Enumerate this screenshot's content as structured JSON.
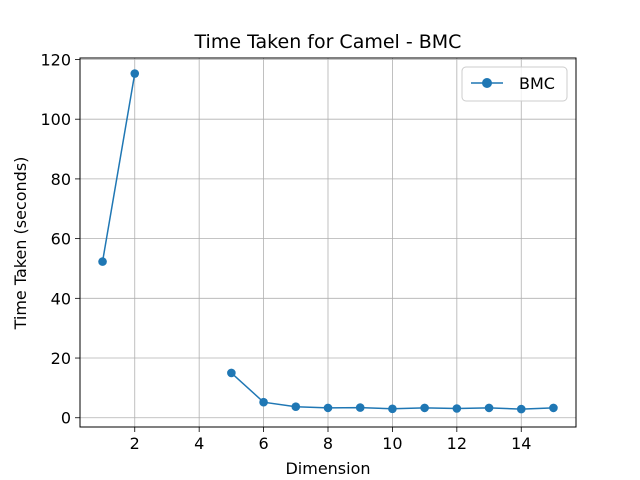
{
  "chart_data": {
    "type": "line",
    "title": "Time Taken for Camel - BMC",
    "xlabel": "Dimension",
    "ylabel": "Time Taken (seconds)",
    "xlim": [
      0.3,
      15.7
    ],
    "ylim": [
      -3.1,
      120.5
    ],
    "xticks": [
      2,
      4,
      6,
      8,
      10,
      12,
      14
    ],
    "yticks": [
      0,
      20,
      40,
      60,
      80,
      100,
      120
    ],
    "grid": true,
    "legend_position": "top-right",
    "series": [
      {
        "name": "BMC",
        "color": "#1f77b4",
        "marker": "circle",
        "points": [
          [
            1,
            52.3
          ],
          [
            2,
            115.3
          ],
          [
            3,
            null
          ],
          [
            4,
            null
          ],
          [
            5,
            15.0
          ],
          [
            6,
            5.2
          ],
          [
            7,
            3.7
          ],
          [
            8,
            3.3
          ],
          [
            9,
            3.4
          ],
          [
            10,
            3.0
          ],
          [
            11,
            3.3
          ],
          [
            12,
            3.1
          ],
          [
            13,
            3.3
          ],
          [
            14,
            2.9
          ],
          [
            15,
            3.3
          ]
        ]
      }
    ]
  }
}
